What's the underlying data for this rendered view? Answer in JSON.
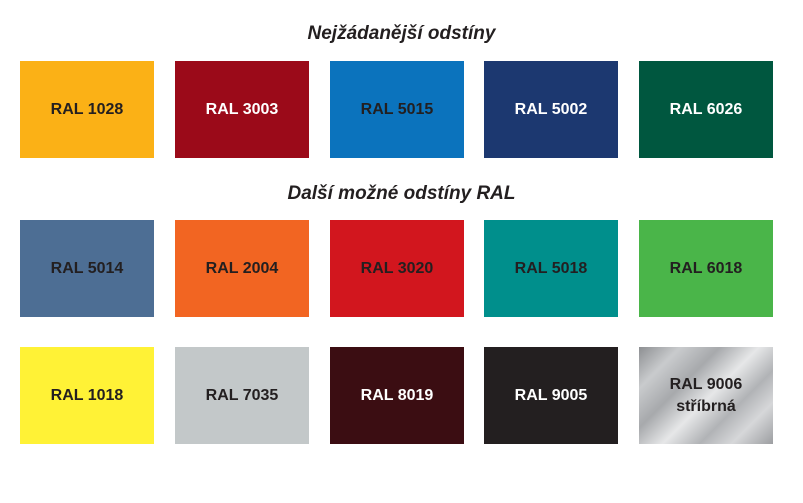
{
  "headings": {
    "most_requested": "Nejžádanější odstíny",
    "other_ral": "Další možné odstíny RAL"
  },
  "most_requested": [
    {
      "label": "RAL 1028",
      "color": "#fbb116"
    },
    {
      "label": "RAL 3003",
      "color": "#9b0a19"
    },
    {
      "label": "RAL 5015",
      "color": "#0b73bd"
    },
    {
      "label": "RAL 5002",
      "color": "#1c3870"
    },
    {
      "label": "RAL 6026",
      "color": "#00573f"
    }
  ],
  "other_row1": [
    {
      "label": "RAL 5014",
      "color": "#4d6e94"
    },
    {
      "label": "RAL 2004",
      "color": "#f26522"
    },
    {
      "label": "RAL 3020",
      "color": "#d2161e"
    },
    {
      "label": "RAL 5018",
      "color": "#008f8c"
    },
    {
      "label": "RAL 6018",
      "color": "#4ab549"
    }
  ],
  "other_row2": [
    {
      "label": "RAL 1018",
      "color": "#fff236"
    },
    {
      "label": "RAL 7035",
      "color": "#c3c8c9"
    },
    {
      "label": "RAL 8019",
      "color": "#3b0d12"
    },
    {
      "label": "RAL 9005",
      "color": "#231f20"
    },
    {
      "label": "RAL 9006",
      "sublabel": "stříbrná",
      "color": "#b3b5b8"
    }
  ]
}
